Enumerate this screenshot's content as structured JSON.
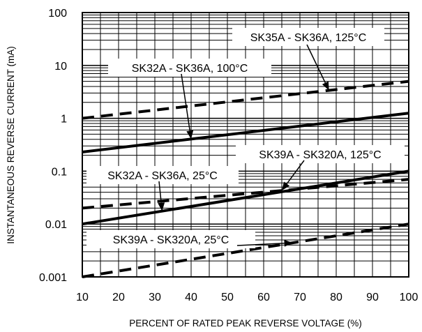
{
  "chart_data": {
    "type": "line",
    "title": "",
    "xlabel": "PERCENT OF RATED PEAK REVERSE VOLTAGE (%)",
    "ylabel": "INSTANTANEOUS REVERSE CURRENT (mA)",
    "xlim": [
      10,
      100
    ],
    "ylim": [
      0.001,
      100
    ],
    "yscale": "log",
    "grid": true,
    "x_ticks": [
      "10",
      "20",
      "30",
      "40",
      "50",
      "60",
      "70",
      "80",
      "90",
      "100"
    ],
    "y_ticks": [
      "0.001",
      "0.01",
      "0.1",
      "1",
      "10",
      "100"
    ],
    "series": [
      {
        "name": "SK35A - SK36A, 125°C",
        "style": "dashed",
        "x": [
          10,
          100
        ],
        "y": [
          1.0,
          5.0
        ]
      },
      {
        "name": "SK32A - SK36A, 100°C",
        "style": "solid",
        "x": [
          10,
          100
        ],
        "y": [
          0.23,
          1.25
        ]
      },
      {
        "name": "SK39A - SK320A, 125°C",
        "style": "dashed",
        "x": [
          10,
          100
        ],
        "y": [
          0.02,
          0.07
        ]
      },
      {
        "name": "SK32A - SK36A, 25°C",
        "style": "solid",
        "x": [
          10,
          100
        ],
        "y": [
          0.01,
          0.1
        ]
      },
      {
        "name": "SK39A - SK320A, 25°C",
        "style": "dashed",
        "x": [
          10,
          100
        ],
        "y": [
          0.001,
          0.01
        ]
      }
    ],
    "annotations": [
      {
        "text": "SK35A - SK36A, 125°C",
        "series": 0,
        "arrow_at_x": 78
      },
      {
        "text": "SK32A - SK36A, 100°C",
        "series": 1,
        "arrow_at_x": 40
      },
      {
        "text": "SK39A - SK320A, 125°C",
        "series": 2,
        "arrow_at_x": 65
      },
      {
        "text": "SK32A - SK36A, 25°C",
        "series": 3,
        "arrow_at_x": 32
      },
      {
        "text": "SK39A - SK320A, 25°C",
        "series": 4,
        "arrow_at_x": 68
      }
    ]
  }
}
